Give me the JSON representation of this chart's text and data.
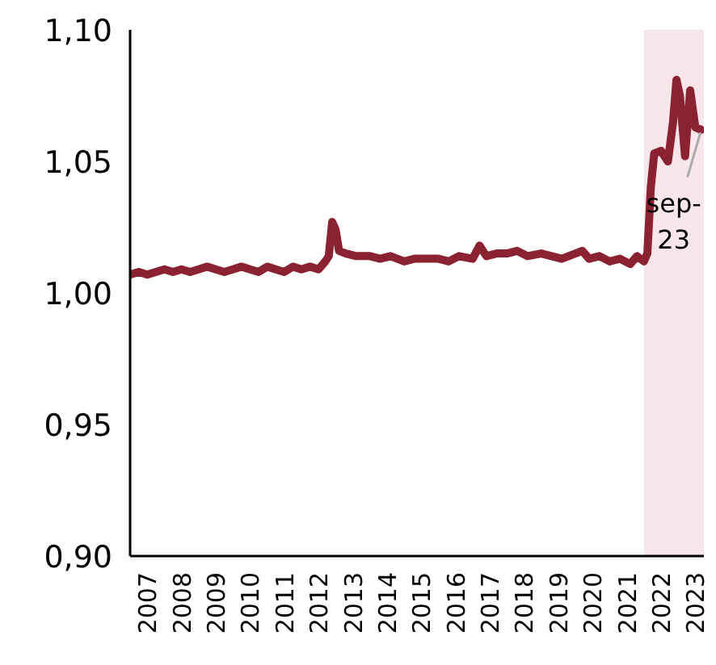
{
  "chart_data": {
    "type": "line",
    "x": [
      2007.0,
      2007.25,
      2007.5,
      2007.75,
      2008.0,
      2008.25,
      2008.5,
      2008.75,
      2009.0,
      2009.25,
      2009.5,
      2009.75,
      2010.0,
      2010.25,
      2010.5,
      2010.75,
      2011.0,
      2011.25,
      2011.5,
      2011.75,
      2012.0,
      2012.25,
      2012.5,
      2012.7,
      2012.8,
      2012.9,
      2013.0,
      2013.1,
      2013.3,
      2013.6,
      2014.0,
      2014.3,
      2014.6,
      2015.0,
      2015.3,
      2015.6,
      2016.0,
      2016.3,
      2016.6,
      2017.0,
      2017.2,
      2017.4,
      2017.7,
      2018.0,
      2018.3,
      2018.6,
      2019.0,
      2019.3,
      2019.6,
      2020.0,
      2020.2,
      2020.4,
      2020.7,
      2021.0,
      2021.3,
      2021.6,
      2021.8,
      2022.0,
      2022.1,
      2022.2,
      2022.3,
      2022.5,
      2022.7,
      2022.85,
      2022.95,
      2023.05,
      2023.2,
      2023.35,
      2023.5,
      2023.67
    ],
    "series": [
      {
        "color": "#8b2232",
        "values": [
          1.007,
          1.008,
          1.007,
          1.008,
          1.009,
          1.008,
          1.009,
          1.008,
          1.009,
          1.01,
          1.009,
          1.008,
          1.009,
          1.01,
          1.009,
          1.008,
          1.01,
          1.009,
          1.008,
          1.01,
          1.009,
          1.01,
          1.009,
          1.012,
          1.014,
          1.027,
          1.024,
          1.016,
          1.015,
          1.014,
          1.014,
          1.013,
          1.014,
          1.012,
          1.013,
          1.013,
          1.013,
          1.012,
          1.014,
          1.013,
          1.018,
          1.014,
          1.015,
          1.015,
          1.016,
          1.014,
          1.015,
          1.014,
          1.013,
          1.015,
          1.016,
          1.013,
          1.014,
          1.012,
          1.013,
          1.011,
          1.014,
          1.012,
          1.015,
          1.04,
          1.053,
          1.054,
          1.05,
          1.065,
          1.081,
          1.075,
          1.052,
          1.077,
          1.063,
          1.062
        ]
      }
    ],
    "xlim": [
      2007.0,
      2023.75
    ],
    "xticks": [
      {
        "value": 2007.5,
        "label": "2007"
      },
      {
        "value": 2008.5,
        "label": "2008"
      },
      {
        "value": 2009.5,
        "label": "2009"
      },
      {
        "value": 2010.5,
        "label": "2010"
      },
      {
        "value": 2011.5,
        "label": "2011"
      },
      {
        "value": 2012.5,
        "label": "2012"
      },
      {
        "value": 2013.5,
        "label": "2013"
      },
      {
        "value": 2014.5,
        "label": "2014"
      },
      {
        "value": 2015.5,
        "label": "2015"
      },
      {
        "value": 2016.5,
        "label": "2016"
      },
      {
        "value": 2017.5,
        "label": "2017"
      },
      {
        "value": 2018.5,
        "label": "2018"
      },
      {
        "value": 2019.5,
        "label": "2019"
      },
      {
        "value": 2020.5,
        "label": "2020"
      },
      {
        "value": 2021.5,
        "label": "2021"
      },
      {
        "value": 2022.5,
        "label": "2022"
      },
      {
        "value": 2023.5,
        "label": "2023"
      }
    ],
    "ylim": [
      0.9,
      1.1
    ],
    "yticks": [
      {
        "value": 0.9,
        "label": "0,90"
      },
      {
        "value": 0.95,
        "label": "0,95"
      },
      {
        "value": 1.0,
        "label": "1,00"
      },
      {
        "value": 1.05,
        "label": "1,05"
      },
      {
        "value": 1.1,
        "label": "1,10"
      }
    ],
    "bands": [
      {
        "axis": "x",
        "from": 2022.0,
        "to": 2023.75,
        "color": "#f9e6ea"
      }
    ],
    "annotations": [
      {
        "text": "sep-\n23",
        "x": 2023.67,
        "y": 1.062
      }
    ],
    "grid": false
  }
}
